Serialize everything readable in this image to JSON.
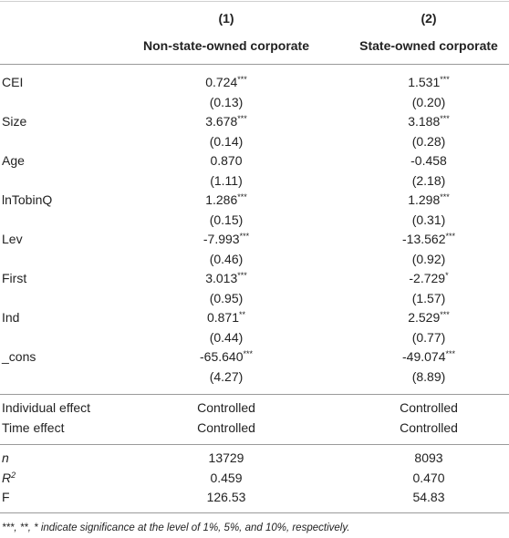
{
  "header": {
    "columns": [
      "(1)",
      "(2)"
    ],
    "subtitles": [
      "Non-state-owned corporate",
      "State-owned corporate"
    ]
  },
  "table": {
    "variables": [
      {
        "label": "CEI",
        "cells": [
          {
            "coef": "0.724",
            "stars": "***",
            "se": "(0.13)"
          },
          {
            "coef": "1.531",
            "stars": "***",
            "se": "(0.20)"
          }
        ]
      },
      {
        "label": "Size",
        "cells": [
          {
            "coef": "3.678",
            "stars": "***",
            "se": "(0.14)"
          },
          {
            "coef": "3.188",
            "stars": "***",
            "se": "(0.28)"
          }
        ]
      },
      {
        "label": "Age",
        "cells": [
          {
            "coef": "0.870",
            "se": "(1.11)"
          },
          {
            "coef": "-0.458",
            "se": "(2.18)"
          }
        ]
      },
      {
        "label": "lnTobinQ",
        "cells": [
          {
            "coef": "1.286",
            "stars": "***",
            "se": "(0.15)"
          },
          {
            "coef": "1.298",
            "stars": "***",
            "se": "(0.31)"
          }
        ]
      },
      {
        "label": "Lev",
        "cells": [
          {
            "coef": "-7.993",
            "stars": "***",
            "se": "(0.46)"
          },
          {
            "coef": "-13.562",
            "stars": "***",
            "se": "(0.92)"
          }
        ]
      },
      {
        "label": "First",
        "cells": [
          {
            "coef": "3.013",
            "stars": "***",
            "se": "(0.95)"
          },
          {
            "coef": "-2.729",
            "stars": "*",
            "se": "(1.57)"
          }
        ]
      },
      {
        "label": "Ind",
        "cells": [
          {
            "coef": "0.871",
            "stars": "**",
            "se": "(0.44)"
          },
          {
            "coef": "2.529",
            "stars": "***",
            "se": "(0.77)"
          }
        ]
      },
      {
        "label": "_cons",
        "cells": [
          {
            "coef": "-65.640",
            "stars": "***",
            "se": "(4.27)"
          },
          {
            "coef": "-49.074",
            "stars": "***",
            "se": "(8.89)"
          }
        ]
      }
    ],
    "controls": [
      {
        "label": "Individual effect",
        "cells": [
          "Controlled",
          "Controlled"
        ]
      },
      {
        "label": "Time effect",
        "cells": [
          "Controlled",
          "Controlled"
        ]
      }
    ],
    "stats": [
      {
        "label": {
          "text": "n",
          "italic": true
        },
        "cells": [
          "13729",
          "8093"
        ]
      },
      {
        "label": {
          "text": "R",
          "sup": "2",
          "italic": true
        },
        "cells": [
          "0.459",
          "0.470"
        ]
      },
      {
        "label": {
          "text": "F"
        },
        "cells": [
          "126.53",
          "54.83"
        ]
      }
    ]
  },
  "footnote": "***, **, * indicate significance at the level of 1%, 5%, and 10%, respectively."
}
